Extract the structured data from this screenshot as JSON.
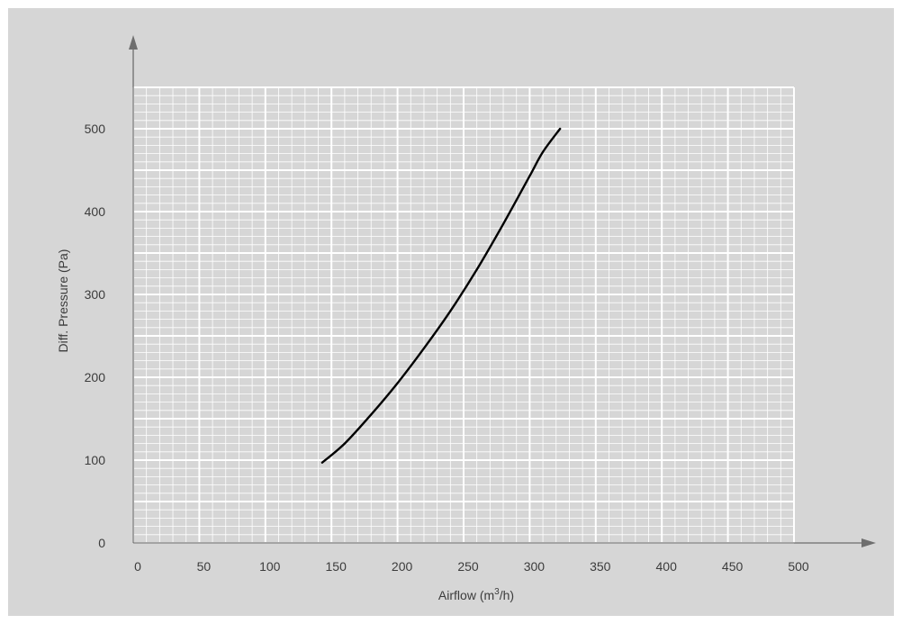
{
  "chart_data": {
    "type": "line",
    "title": "",
    "xlabel": "Airflow (m",
    "xlabel_superscript": "3",
    "xlabel_suffix": "/h)",
    "ylabel": "Diff. Pressure (Pa)",
    "xlim": [
      0,
      500
    ],
    "ylim": [
      0,
      550
    ],
    "x_ticks": [
      0,
      50,
      100,
      150,
      200,
      250,
      300,
      350,
      400,
      450,
      500
    ],
    "y_ticks": [
      0,
      100,
      200,
      300,
      400,
      500
    ],
    "grid": true,
    "minor_grid": true,
    "legend": "none",
    "series": [
      {
        "x": [
          143,
          160,
          180,
          200,
          220,
          240,
          260,
          280,
          300,
          310,
          323
        ],
        "y": [
          97,
          120,
          155,
          193,
          235,
          280,
          330,
          385,
          443,
          472,
          500
        ]
      }
    ]
  },
  "colors": {
    "panel_background": "#d6d6d6",
    "grid_line": "#ffffff",
    "plot_area": "#d6d6d6",
    "axis": "#6e6e6e",
    "curve": "#000000",
    "text": "#3c3c3c"
  }
}
